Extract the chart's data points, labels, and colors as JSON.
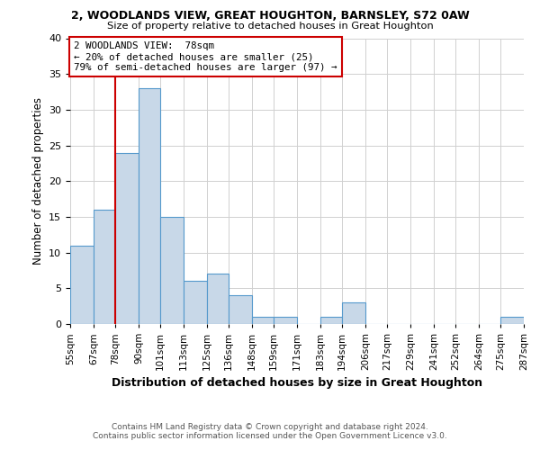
{
  "title": "2, WOODLANDS VIEW, GREAT HOUGHTON, BARNSLEY, S72 0AW",
  "subtitle": "Size of property relative to detached houses in Great Houghton",
  "xlabel": "Distribution of detached houses by size in Great Houghton",
  "ylabel": "Number of detached properties",
  "footnote1": "Contains HM Land Registry data © Crown copyright and database right 2024.",
  "footnote2": "Contains public sector information licensed under the Open Government Licence v3.0.",
  "bin_edges": [
    55,
    67,
    78,
    90,
    101,
    113,
    125,
    136,
    148,
    159,
    171,
    183,
    194,
    206,
    217,
    229,
    241,
    252,
    264,
    275,
    287
  ],
  "bin_labels": [
    "55sqm",
    "67sqm",
    "78sqm",
    "90sqm",
    "101sqm",
    "113sqm",
    "125sqm",
    "136sqm",
    "148sqm",
    "159sqm",
    "171sqm",
    "183sqm",
    "194sqm",
    "206sqm",
    "217sqm",
    "229sqm",
    "241sqm",
    "252sqm",
    "264sqm",
    "275sqm",
    "287sqm"
  ],
  "counts": [
    11,
    16,
    24,
    33,
    15,
    6,
    7,
    4,
    1,
    1,
    0,
    1,
    3,
    0,
    0,
    0,
    0,
    0,
    0,
    1
  ],
  "bar_color": "#c8d8e8",
  "bar_edge_color": "#5599cc",
  "property_line_x": 78,
  "property_line_color": "#cc0000",
  "annotation_line1": "2 WOODLANDS VIEW:  78sqm",
  "annotation_line2": "← 20% of detached houses are smaller (25)",
  "annotation_line3": "79% of semi-detached houses are larger (97) →",
  "annotation_box_color": "#ffffff",
  "annotation_box_edge_color": "#cc0000",
  "ylim": [
    0,
    40
  ],
  "yticks": [
    0,
    5,
    10,
    15,
    20,
    25,
    30,
    35,
    40
  ],
  "background_color": "#ffffff",
  "grid_color": "#d0d0d0"
}
